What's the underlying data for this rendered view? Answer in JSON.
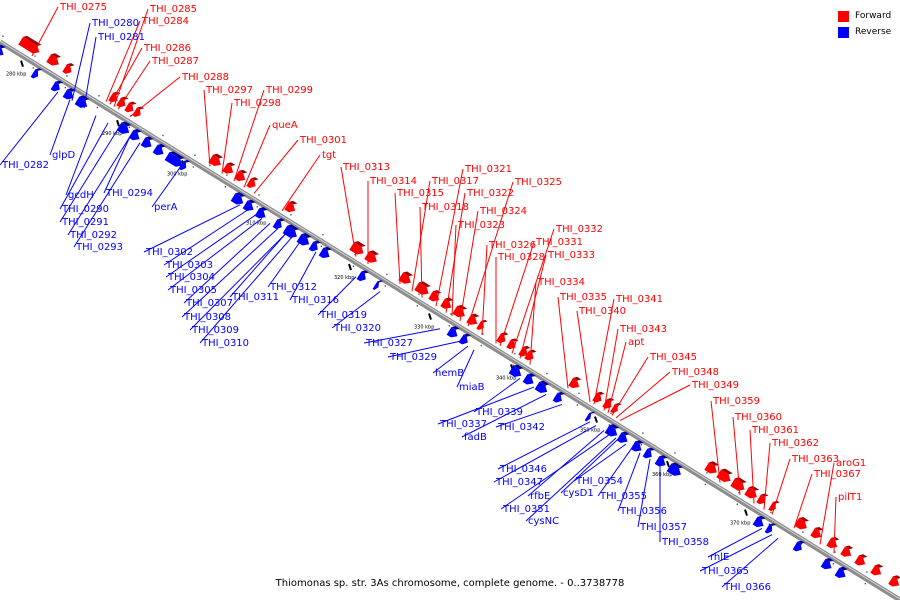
{
  "colors": {
    "forward": "#ff0000",
    "reverse": "#0000ff",
    "backbone": "#8c8c8c"
  },
  "legend": {
    "forward_label": "Forward",
    "reverse_label": "Reverse"
  },
  "caption": "Thiomonas sp. str. 3As chromosome, complete genome. - 0..3738778",
  "ticks": [
    "280 kbp",
    "290 kbp",
    "300 kbp",
    "310 kbp",
    "320 kbp",
    "330 kbp",
    "340 kbp",
    "350 kbp",
    "360 kbp",
    "370 kbp"
  ],
  "forward_genes": [
    "THI_0275",
    "THI_0284",
    "THI_0285",
    "THI_0286",
    "THI_0287",
    "THI_0288",
    "THI_0297",
    "THI_0298",
    "THI_0299",
    "queA",
    "THI_0301",
    "tgt",
    "THI_0313",
    "THI_0314",
    "THI_0315",
    "THI_0317",
    "THI_0318",
    "THI_0321",
    "THI_0322",
    "THI_0323",
    "THI_0324",
    "THI_0325",
    "THI_0326",
    "THI_0328",
    "THI_0331",
    "THI_0332",
    "THI_0333",
    "THI_0334",
    "THI_0335",
    "THI_0340",
    "THI_0341",
    "THI_0343",
    "apt",
    "THI_0345",
    "THI_0348",
    "THI_0349",
    "THI_0359",
    "THI_0360",
    "THI_0361",
    "THI_0362",
    "THI_0363",
    "THI_0367",
    "aroG1",
    "pilT1"
  ],
  "reverse_genes": [
    "THI_0280",
    "THI_0281",
    "THI_0282",
    "glpD",
    "gcdH",
    "THI_0290",
    "THI_0294",
    "THI_0291",
    "THI_0292",
    "THI_0293",
    "perA",
    "THI_0302",
    "THI_0303",
    "THI_0304",
    "THI_0305",
    "THI_0307",
    "THI_0308",
    "THI_0309",
    "THI_0310",
    "THI_0311",
    "THI_0312",
    "THI_0316",
    "THI_0319",
    "THI_0320",
    "THI_0327",
    "THI_0329",
    "hemB",
    "miaB",
    "THI_0339",
    "THI_0337",
    "fadB",
    "THI_0342",
    "THI_0346",
    "THI_0347",
    "rfbE",
    "THI_0351",
    "cysD1",
    "cysNC",
    "THI_0354",
    "THI_0355",
    "THI_0356",
    "THI_0357",
    "THI_0358",
    "rhlE",
    "THI_0365",
    "THI_0366"
  ]
}
